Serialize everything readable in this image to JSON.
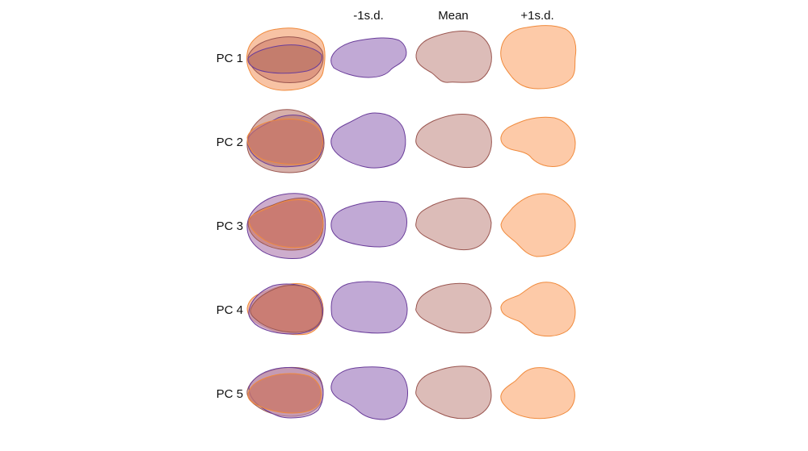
{
  "columns": [
    {
      "label": "",
      "kind": "overlay"
    },
    {
      "label": "-1s.d.",
      "kind": "minus"
    },
    {
      "label": "Mean",
      "kind": "mean"
    },
    {
      "label": "+1s.d.",
      "kind": "plus"
    }
  ],
  "rows": [
    {
      "label": "PC 1"
    },
    {
      "label": "PC 2"
    },
    {
      "label": "PC 3"
    },
    {
      "label": "PC 4"
    },
    {
      "label": "PC 5"
    }
  ],
  "colors": {
    "minus_fill": "#c1a9d5",
    "minus_stroke": "#6a3d9a",
    "mean_fill": "#dcbcb8",
    "mean_stroke": "#9a5650",
    "plus_fill": "#fdcaa8",
    "plus_stroke": "#f08a3c",
    "overlay_dark": "#c97565",
    "overlay_dark_stroke": "#b8503c"
  }
}
